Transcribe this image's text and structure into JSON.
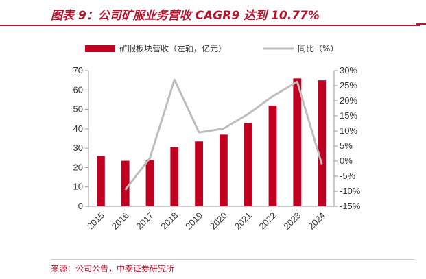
{
  "title": "图表 9：公司矿服业务营收 CAGR9 达到 10.77%",
  "source": "来源：公司公告，中泰证券研究所",
  "colors": {
    "bar": "#c00020",
    "line": "#bdbdbd",
    "accent": "#b5122b"
  },
  "chart_data": {
    "type": "bar",
    "categories": [
      "2015",
      "2016",
      "2017",
      "2018",
      "2019",
      "2020",
      "2021",
      "2022",
      "2023",
      "2024"
    ],
    "series": [
      {
        "name": "矿服板块营收（左轴，亿元）",
        "type": "bar",
        "axis": "left",
        "values": [
          26,
          23.5,
          24,
          30.5,
          33.5,
          37,
          43,
          52,
          66,
          65
        ]
      },
      {
        "name": "同比（%）",
        "type": "line",
        "axis": "right",
        "values": [
          null,
          -9.5,
          1.0,
          27.0,
          9.5,
          10.8,
          15.6,
          21.5,
          26.3,
          -1.0
        ]
      }
    ],
    "ylim_left": [
      0,
      70
    ],
    "yticks_left": [
      "0",
      "10",
      "20",
      "30",
      "40",
      "50",
      "60",
      "70"
    ],
    "ylim_right": [
      -15,
      30
    ],
    "yticks_right": [
      "-15%",
      "-10%",
      "-5%",
      "0%",
      "5%",
      "10%",
      "15%",
      "20%",
      "25%",
      "30%"
    ],
    "legend_position": "top",
    "grid": false
  }
}
